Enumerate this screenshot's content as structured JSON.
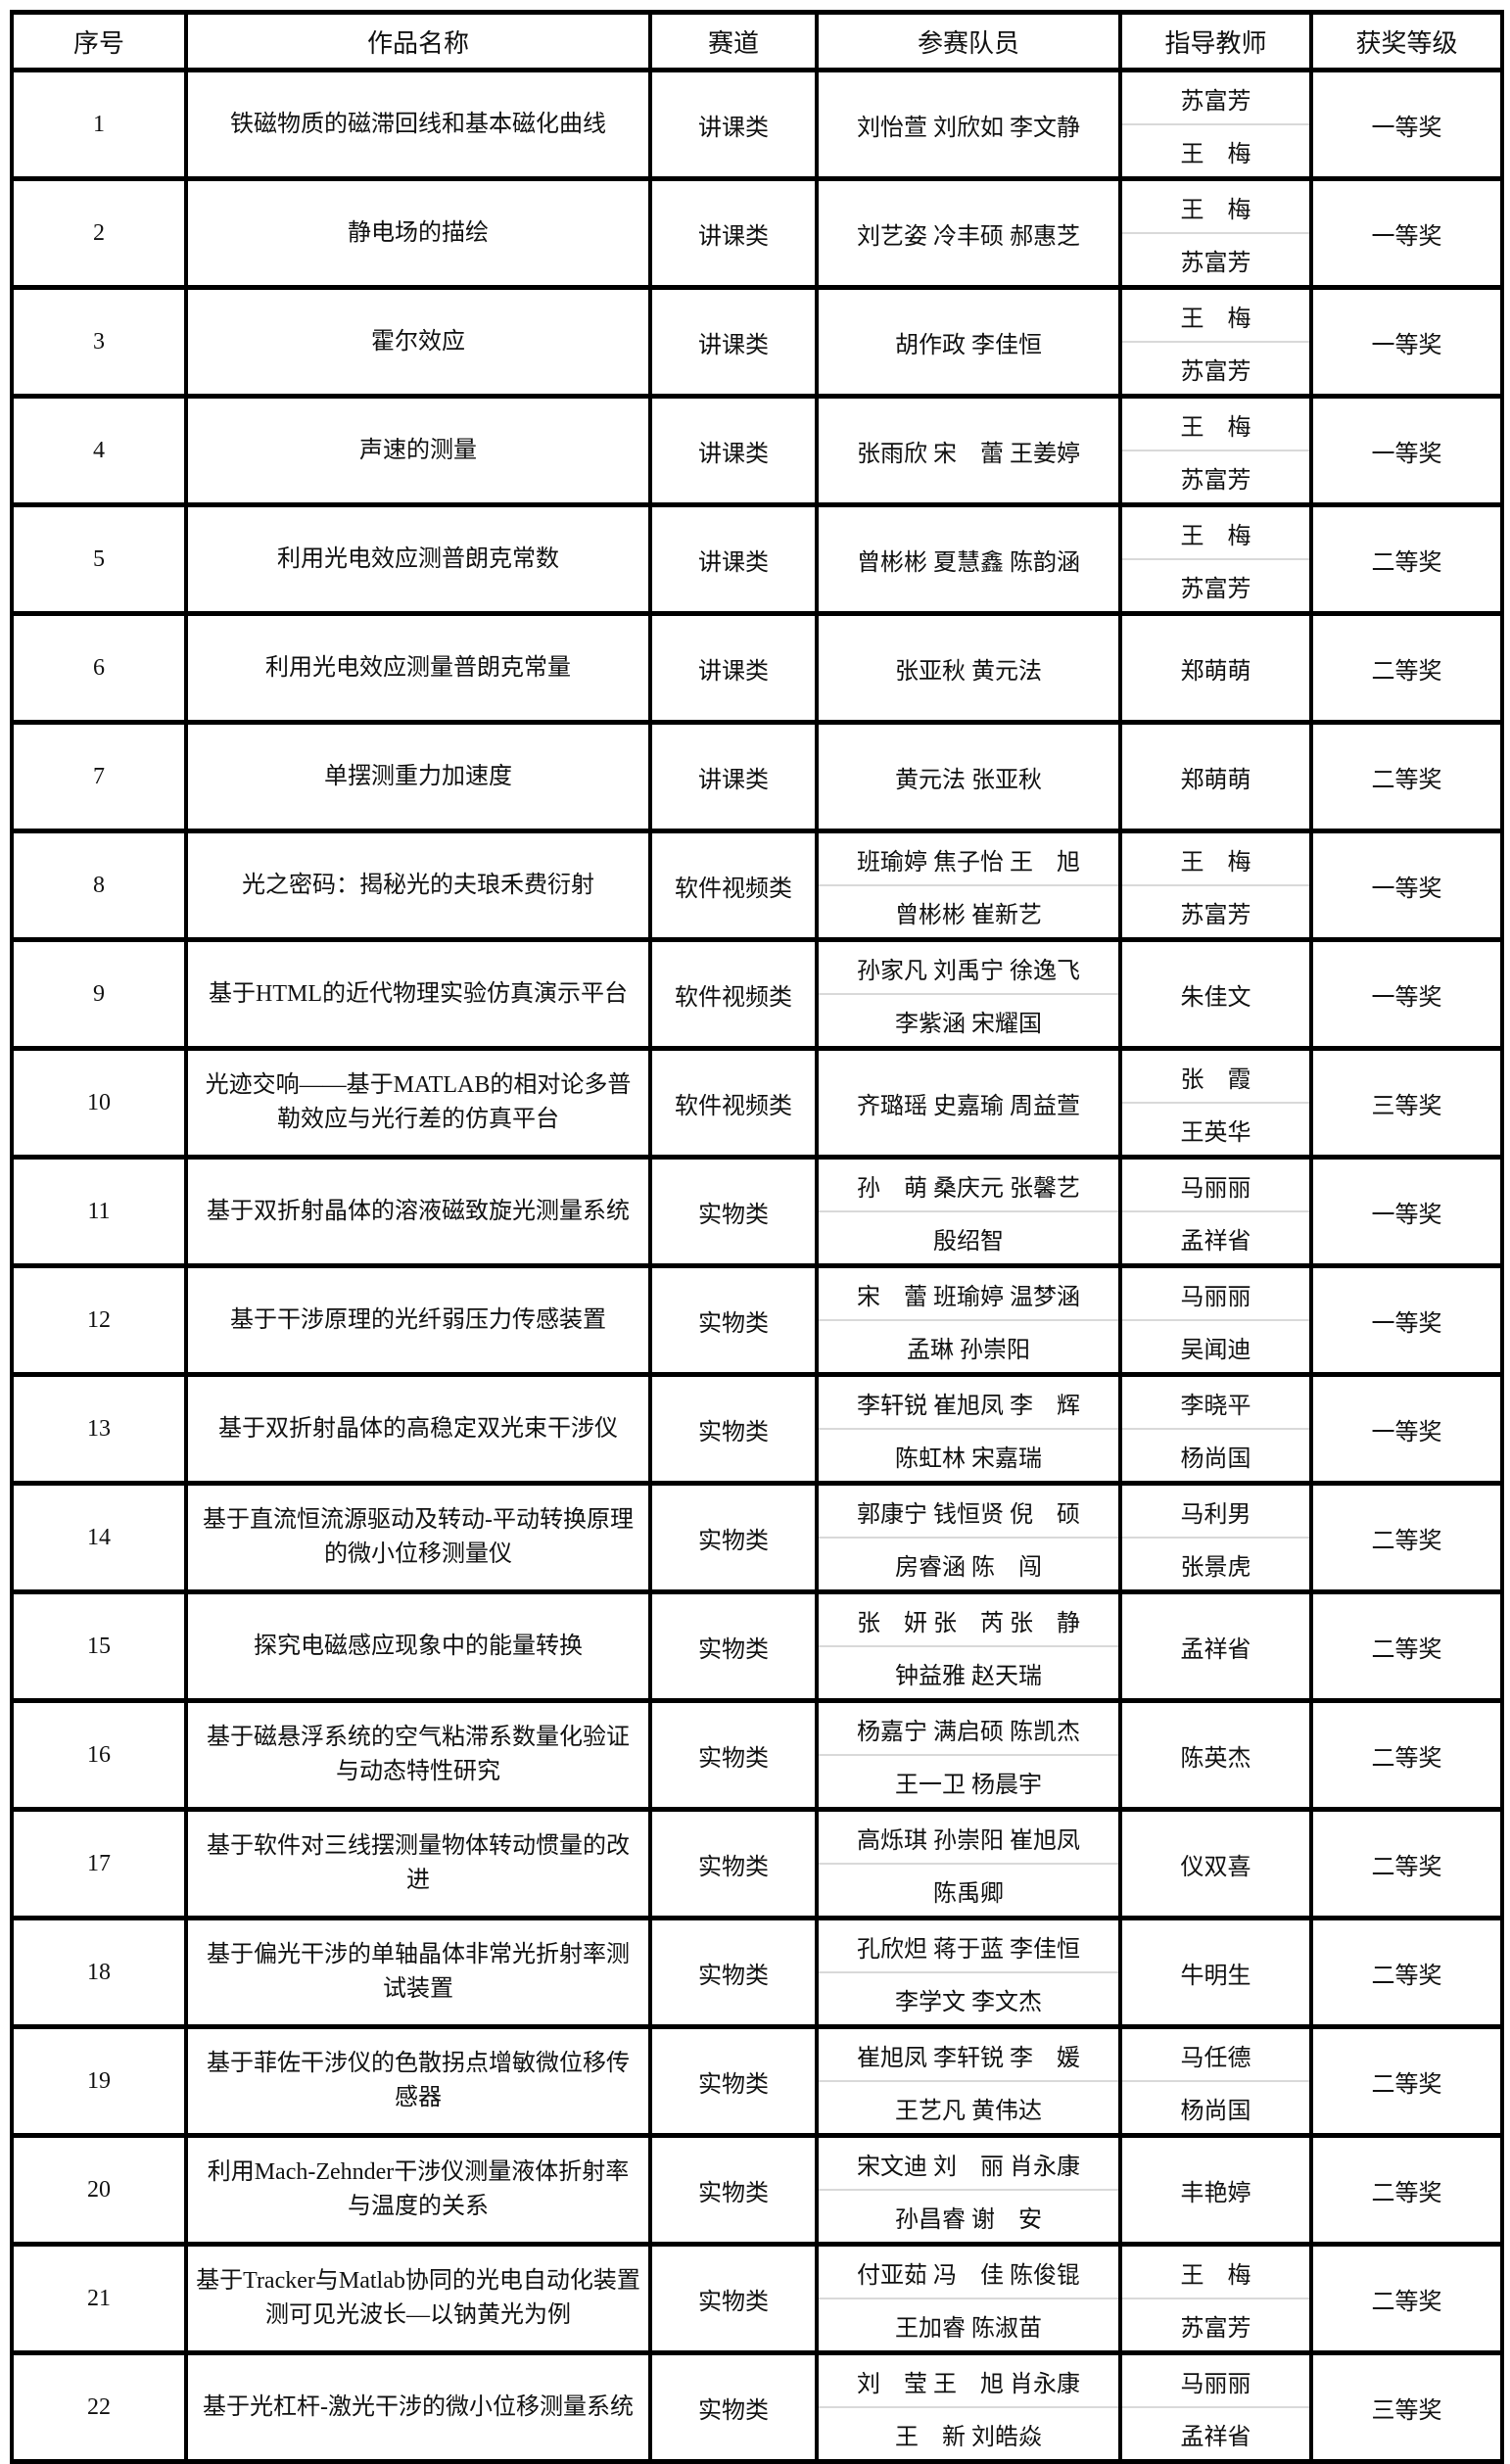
{
  "colors": {
    "border": "#000000",
    "divider": "#d9d9d9",
    "text": "#111111",
    "background": "#ffffff"
  },
  "table": {
    "headers": [
      "序号",
      "作品名称",
      "赛道",
      "参赛队员",
      "指导教师",
      "获奖等级"
    ],
    "rows": [
      {
        "no": "1",
        "title": "铁磁物质的磁滞回线和基本磁化曲线",
        "track": "讲课类",
        "members": [
          "刘怡萱 刘欣如 李文静"
        ],
        "teachers": [
          "苏富芳",
          "王　梅"
        ],
        "award": "一等奖"
      },
      {
        "no": "2",
        "title": "静电场的描绘",
        "track": "讲课类",
        "members": [
          "刘艺姿 冷丰硕 郝惠芝"
        ],
        "teachers": [
          "王　梅",
          "苏富芳"
        ],
        "award": "一等奖"
      },
      {
        "no": "3",
        "title": "霍尔效应",
        "track": "讲课类",
        "members": [
          "胡作政 李佳恒"
        ],
        "teachers": [
          "王　梅",
          "苏富芳"
        ],
        "award": "一等奖"
      },
      {
        "no": "4",
        "title": "声速的测量",
        "track": "讲课类",
        "members": [
          "张雨欣 宋　蕾 王姜婷"
        ],
        "teachers": [
          "王　梅",
          "苏富芳"
        ],
        "award": "一等奖"
      },
      {
        "no": "5",
        "title": "利用光电效应测普朗克常数",
        "track": "讲课类",
        "members": [
          "曾彬彬 夏慧鑫 陈韵涵"
        ],
        "teachers": [
          "王　梅",
          "苏富芳"
        ],
        "award": "二等奖"
      },
      {
        "no": "6",
        "title": "利用光电效应测量普朗克常量",
        "track": "讲课类",
        "members": [
          "张亚秋 黄元法"
        ],
        "teachers": [
          "郑萌萌"
        ],
        "award": "二等奖"
      },
      {
        "no": "7",
        "title": "单摆测重力加速度",
        "track": "讲课类",
        "members": [
          "黄元法 张亚秋"
        ],
        "teachers": [
          "郑萌萌"
        ],
        "award": "二等奖"
      },
      {
        "no": "8",
        "title": "光之密码：揭秘光的夫琅禾费衍射",
        "track": "软件视频类",
        "members": [
          "班瑜婷 焦子怡 王　旭",
          "曾彬彬 崔新艺"
        ],
        "teachers": [
          "王　梅",
          "苏富芳"
        ],
        "award": "一等奖"
      },
      {
        "no": "9",
        "title": "基于HTML的近代物理实验仿真演示平台",
        "track": "软件视频类",
        "members": [
          "孙家凡 刘禹宁 徐逸飞",
          "李紫涵 宋耀国"
        ],
        "teachers": [
          "朱佳文"
        ],
        "award": "一等奖"
      },
      {
        "no": "10",
        "title": "光迹交响——基于MATLAB的相对论多普勒效应与光行差的仿真平台",
        "track": "软件视频类",
        "members": [
          "齐璐瑶 史嘉瑜 周益萱"
        ],
        "teachers": [
          "张　霞",
          "王英华"
        ],
        "award": "三等奖"
      },
      {
        "no": "11",
        "title": "基于双折射晶体的溶液磁致旋光测量系统",
        "track": "实物类",
        "members": [
          "孙　萌 桑庆元 张馨艺",
          "殷绍智"
        ],
        "teachers": [
          "马丽丽",
          "孟祥省"
        ],
        "award": "一等奖"
      },
      {
        "no": "12",
        "title": "基于干涉原理的光纤弱压力传感装置",
        "track": "实物类",
        "members": [
          "宋　蕾 班瑜婷 温梦涵",
          "孟琳 孙崇阳"
        ],
        "teachers": [
          "马丽丽",
          "吴闻迪"
        ],
        "award": "一等奖"
      },
      {
        "no": "13",
        "title": "基于双折射晶体的高稳定双光束干涉仪",
        "track": "实物类",
        "members": [
          "李轩锐 崔旭凤 李　辉",
          "陈虹林 宋嘉瑞"
        ],
        "teachers": [
          "李晓平",
          "杨尚国"
        ],
        "award": "一等奖"
      },
      {
        "no": "14",
        "title": "基于直流恒流源驱动及转动-平动转换原理的微小位移测量仪",
        "track": "实物类",
        "members": [
          "郭康宁 钱恒贤 倪　硕",
          "房睿涵 陈　闯"
        ],
        "teachers": [
          "马利男",
          "张景虎"
        ],
        "award": "二等奖"
      },
      {
        "no": "15",
        "title": "探究电磁感应现象中的能量转换",
        "track": "实物类",
        "members": [
          "张　妍 张　芮 张　静",
          "钟益雅 赵天瑞"
        ],
        "teachers": [
          "孟祥省"
        ],
        "award": "二等奖"
      },
      {
        "no": "16",
        "title": "基于磁悬浮系统的空气粘滞系数量化验证与动态特性研究",
        "track": "实物类",
        "members": [
          "杨嘉宁 满启硕 陈凯杰",
          "王一卫 杨晨宇"
        ],
        "teachers": [
          "陈英杰"
        ],
        "award": "二等奖"
      },
      {
        "no": "17",
        "title": "基于软件对三线摆测量物体转动惯量的改进",
        "track": "实物类",
        "members": [
          "高烁琪 孙崇阳 崔旭凤",
          "陈禹卿"
        ],
        "teachers": [
          "仪双喜"
        ],
        "award": "二等奖"
      },
      {
        "no": "18",
        "title": "基于偏光干涉的单轴晶体非常光折射率测试装置",
        "track": "实物类",
        "members": [
          "孔欣炟 蒋于蓝 李佳恒",
          "李学文 李文杰"
        ],
        "teachers": [
          "牛明生"
        ],
        "award": "二等奖"
      },
      {
        "no": "19",
        "title": "基于菲佐干涉仪的色散拐点增敏微位移传感器",
        "track": "实物类",
        "members": [
          "崔旭凤 李轩锐 李　媛",
          "王艺凡 黄伟达"
        ],
        "teachers": [
          "马任德",
          "杨尚国"
        ],
        "award": "二等奖"
      },
      {
        "no": "20",
        "title": "利用Mach-Zehnder干涉仪测量液体折射率与温度的关系",
        "track": "实物类",
        "members": [
          "宋文迪 刘　丽 肖永康",
          "孙昌睿 谢　安"
        ],
        "teachers": [
          "丰艳婷"
        ],
        "award": "二等奖"
      },
      {
        "no": "21",
        "title": "基于Tracker与Matlab协同的光电自动化装置测可见光波长—以钠黄光为例",
        "track": "实物类",
        "members": [
          "付亚茹 冯　佳 陈俊锟",
          "王加睿 陈淑苗"
        ],
        "teachers": [
          "王　梅",
          "苏富芳"
        ],
        "award": "二等奖"
      },
      {
        "no": "22",
        "title": "基于光杠杆-激光干涉的微小位移测量系统",
        "track": "实物类",
        "members": [
          "刘　莹 王　旭 肖永康",
          "王　新 刘皓焱"
        ],
        "teachers": [
          "马丽丽",
          "孟祥省"
        ],
        "award": "三等奖"
      }
    ]
  }
}
